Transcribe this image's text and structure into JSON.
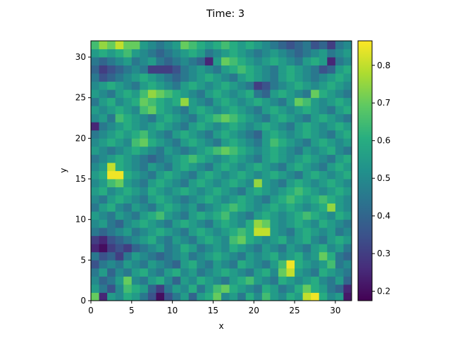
{
  "chart_data": {
    "type": "heatmap",
    "title": "Time: 3",
    "xlabel": "x",
    "ylabel": "y",
    "xlim": [
      0,
      32
    ],
    "ylim": [
      0,
      32
    ],
    "grid_size": [
      32,
      32
    ],
    "xticks": [
      0,
      5,
      10,
      15,
      20,
      25,
      30
    ],
    "yticks": [
      0,
      5,
      10,
      15,
      20,
      25,
      30
    ],
    "colorbar": {
      "range": [
        0.175,
        0.865
      ],
      "ticks": [
        0.2,
        0.3,
        0.4,
        0.5,
        0.6,
        0.7,
        0.8
      ],
      "colormap": "viridis"
    },
    "rows_bottom_to_top": [
      [
        0.7,
        0.25,
        0.55,
        0.5,
        0.6,
        0.55,
        0.45,
        0.35,
        0.2,
        0.35,
        0.45,
        0.55,
        0.4,
        0.55,
        0.6,
        0.7,
        0.5,
        0.55,
        0.45,
        0.6,
        0.5,
        0.65,
        0.55,
        0.5,
        0.6,
        0.55,
        0.8,
        0.85,
        0.6,
        0.5,
        0.55,
        0.22
      ],
      [
        0.55,
        0.45,
        0.35,
        0.5,
        0.65,
        0.6,
        0.55,
        0.4,
        0.3,
        0.45,
        0.55,
        0.5,
        0.6,
        0.45,
        0.55,
        0.65,
        0.7,
        0.6,
        0.55,
        0.5,
        0.45,
        0.6,
        0.55,
        0.45,
        0.5,
        0.6,
        0.7,
        0.6,
        0.55,
        0.45,
        0.4,
        0.25
      ],
      [
        0.5,
        0.4,
        0.45,
        0.55,
        0.7,
        0.5,
        0.45,
        0.55,
        0.6,
        0.5,
        0.4,
        0.55,
        0.5,
        0.6,
        0.55,
        0.5,
        0.45,
        0.55,
        0.6,
        0.65,
        0.55,
        0.5,
        0.45,
        0.6,
        0.55,
        0.5,
        0.55,
        0.6,
        0.5,
        0.45,
        0.55,
        0.4
      ],
      [
        0.45,
        0.55,
        0.4,
        0.5,
        0.45,
        0.55,
        0.6,
        0.5,
        0.45,
        0.55,
        0.6,
        0.5,
        0.55,
        0.45,
        0.5,
        0.55,
        0.6,
        0.55,
        0.5,
        0.45,
        0.55,
        0.6,
        0.5,
        0.7,
        0.8,
        0.55,
        0.5,
        0.45,
        0.6,
        0.55,
        0.5,
        0.45
      ],
      [
        0.35,
        0.45,
        0.5,
        0.45,
        0.55,
        0.5,
        0.45,
        0.55,
        0.5,
        0.45,
        0.4,
        0.55,
        0.6,
        0.5,
        0.45,
        0.55,
        0.5,
        0.45,
        0.6,
        0.55,
        0.5,
        0.45,
        0.55,
        0.65,
        0.85,
        0.6,
        0.55,
        0.5,
        0.55,
        0.65,
        0.45,
        0.5
      ],
      [
        0.45,
        0.35,
        0.4,
        0.3,
        0.45,
        0.55,
        0.5,
        0.45,
        0.4,
        0.45,
        0.5,
        0.55,
        0.45,
        0.5,
        0.55,
        0.6,
        0.55,
        0.5,
        0.45,
        0.55,
        0.5,
        0.55,
        0.6,
        0.5,
        0.55,
        0.6,
        0.5,
        0.55,
        0.7,
        0.6,
        0.45,
        0.4
      ],
      [
        0.25,
        0.2,
        0.3,
        0.35,
        0.3,
        0.4,
        0.45,
        0.5,
        0.55,
        0.45,
        0.5,
        0.6,
        0.55,
        0.45,
        0.5,
        0.55,
        0.5,
        0.6,
        0.55,
        0.5,
        0.45,
        0.55,
        0.5,
        0.45,
        0.55,
        0.5,
        0.45,
        0.55,
        0.6,
        0.5,
        0.55,
        0.45
      ],
      [
        0.3,
        0.25,
        0.35,
        0.4,
        0.45,
        0.5,
        0.55,
        0.6,
        0.5,
        0.45,
        0.55,
        0.5,
        0.45,
        0.55,
        0.6,
        0.55,
        0.5,
        0.65,
        0.7,
        0.6,
        0.55,
        0.5,
        0.55,
        0.6,
        0.5,
        0.55,
        0.6,
        0.5,
        0.45,
        0.55,
        0.6,
        0.55
      ],
      [
        0.45,
        0.4,
        0.45,
        0.5,
        0.55,
        0.45,
        0.5,
        0.55,
        0.6,
        0.55,
        0.5,
        0.45,
        0.55,
        0.6,
        0.55,
        0.5,
        0.55,
        0.6,
        0.65,
        0.6,
        0.8,
        0.8,
        0.55,
        0.5,
        0.45,
        0.55,
        0.6,
        0.55,
        0.5,
        0.55,
        0.45,
        0.5
      ],
      [
        0.5,
        0.55,
        0.45,
        0.4,
        0.5,
        0.55,
        0.6,
        0.55,
        0.5,
        0.45,
        0.55,
        0.6,
        0.55,
        0.5,
        0.45,
        0.55,
        0.6,
        0.55,
        0.5,
        0.6,
        0.75,
        0.7,
        0.55,
        0.5,
        0.55,
        0.6,
        0.55,
        0.5,
        0.6,
        0.55,
        0.5,
        0.45
      ],
      [
        0.55,
        0.5,
        0.45,
        0.55,
        0.5,
        0.45,
        0.55,
        0.6,
        0.65,
        0.55,
        0.5,
        0.45,
        0.55,
        0.6,
        0.55,
        0.6,
        0.65,
        0.55,
        0.5,
        0.45,
        0.55,
        0.6,
        0.55,
        0.5,
        0.55,
        0.6,
        0.65,
        0.6,
        0.55,
        0.5,
        0.6,
        0.55
      ],
      [
        0.45,
        0.55,
        0.6,
        0.5,
        0.45,
        0.55,
        0.5,
        0.45,
        0.55,
        0.6,
        0.55,
        0.5,
        0.55,
        0.45,
        0.5,
        0.55,
        0.6,
        0.65,
        0.6,
        0.55,
        0.5,
        0.55,
        0.6,
        0.55,
        0.6,
        0.55,
        0.5,
        0.55,
        0.6,
        0.75,
        0.55,
        0.5
      ],
      [
        0.5,
        0.45,
        0.55,
        0.6,
        0.55,
        0.5,
        0.45,
        0.55,
        0.6,
        0.55,
        0.5,
        0.45,
        0.5,
        0.55,
        0.6,
        0.55,
        0.5,
        0.55,
        0.6,
        0.55,
        0.5,
        0.45,
        0.55,
        0.6,
        0.65,
        0.6,
        0.55,
        0.6,
        0.65,
        0.6,
        0.55,
        0.5
      ],
      [
        0.55,
        0.6,
        0.5,
        0.55,
        0.6,
        0.55,
        0.5,
        0.6,
        0.55,
        0.5,
        0.55,
        0.6,
        0.55,
        0.5,
        0.55,
        0.6,
        0.55,
        0.5,
        0.45,
        0.55,
        0.6,
        0.55,
        0.5,
        0.55,
        0.6,
        0.65,
        0.6,
        0.55,
        0.5,
        0.55,
        0.6,
        0.55
      ],
      [
        0.5,
        0.55,
        0.65,
        0.7,
        0.55,
        0.5,
        0.45,
        0.55,
        0.6,
        0.55,
        0.5,
        0.45,
        0.55,
        0.6,
        0.55,
        0.5,
        0.55,
        0.6,
        0.55,
        0.5,
        0.75,
        0.55,
        0.5,
        0.45,
        0.55,
        0.6,
        0.55,
        0.5,
        0.55,
        0.6,
        0.55,
        0.5
      ],
      [
        0.55,
        0.6,
        0.85,
        0.85,
        0.6,
        0.55,
        0.5,
        0.45,
        0.55,
        0.6,
        0.55,
        0.5,
        0.45,
        0.55,
        0.6,
        0.55,
        0.5,
        0.55,
        0.6,
        0.55,
        0.5,
        0.55,
        0.6,
        0.55,
        0.5,
        0.45,
        0.55,
        0.6,
        0.55,
        0.5,
        0.55,
        0.6
      ],
      [
        0.5,
        0.55,
        0.8,
        0.6,
        0.55,
        0.5,
        0.45,
        0.55,
        0.5,
        0.45,
        0.55,
        0.6,
        0.55,
        0.5,
        0.45,
        0.55,
        0.6,
        0.55,
        0.5,
        0.55,
        0.6,
        0.55,
        0.5,
        0.45,
        0.55,
        0.6,
        0.55,
        0.5,
        0.45,
        0.55,
        0.6,
        0.55
      ],
      [
        0.45,
        0.5,
        0.55,
        0.6,
        0.55,
        0.5,
        0.45,
        0.4,
        0.45,
        0.5,
        0.55,
        0.6,
        0.65,
        0.6,
        0.55,
        0.5,
        0.55,
        0.6,
        0.55,
        0.5,
        0.45,
        0.55,
        0.6,
        0.55,
        0.5,
        0.55,
        0.6,
        0.55,
        0.5,
        0.45,
        0.55,
        0.6
      ],
      [
        0.55,
        0.5,
        0.45,
        0.5,
        0.55,
        0.6,
        0.55,
        0.5,
        0.45,
        0.55,
        0.5,
        0.45,
        0.5,
        0.55,
        0.6,
        0.65,
        0.7,
        0.65,
        0.6,
        0.55,
        0.5,
        0.55,
        0.6,
        0.55,
        0.5,
        0.45,
        0.55,
        0.5,
        0.55,
        0.6,
        0.5,
        0.45
      ],
      [
        0.5,
        0.55,
        0.6,
        0.55,
        0.5,
        0.65,
        0.7,
        0.6,
        0.55,
        0.5,
        0.45,
        0.55,
        0.6,
        0.55,
        0.5,
        0.45,
        0.55,
        0.6,
        0.55,
        0.5,
        0.45,
        0.55,
        0.65,
        0.6,
        0.55,
        0.5,
        0.45,
        0.55,
        0.6,
        0.55,
        0.5,
        0.55
      ],
      [
        0.45,
        0.5,
        0.55,
        0.6,
        0.55,
        0.6,
        0.65,
        0.55,
        0.5,
        0.45,
        0.55,
        0.6,
        0.55,
        0.5,
        0.45,
        0.55,
        0.6,
        0.55,
        0.5,
        0.45,
        0.4,
        0.55,
        0.6,
        0.55,
        0.5,
        0.55,
        0.6,
        0.55,
        0.5,
        0.45,
        0.55,
        0.6
      ],
      [
        0.25,
        0.45,
        0.5,
        0.55,
        0.6,
        0.55,
        0.5,
        0.55,
        0.6,
        0.55,
        0.5,
        0.45,
        0.55,
        0.6,
        0.55,
        0.5,
        0.55,
        0.6,
        0.55,
        0.5,
        0.55,
        0.6,
        0.55,
        0.5,
        0.45,
        0.55,
        0.6,
        0.55,
        0.5,
        0.55,
        0.6,
        0.55
      ],
      [
        0.5,
        0.55,
        0.45,
        0.65,
        0.6,
        0.55,
        0.5,
        0.45,
        0.55,
        0.6,
        0.55,
        0.5,
        0.45,
        0.55,
        0.6,
        0.65,
        0.7,
        0.65,
        0.6,
        0.55,
        0.5,
        0.45,
        0.55,
        0.6,
        0.55,
        0.5,
        0.45,
        0.55,
        0.6,
        0.55,
        0.5,
        0.45
      ],
      [
        0.55,
        0.5,
        0.55,
        0.6,
        0.55,
        0.5,
        0.65,
        0.7,
        0.6,
        0.55,
        0.5,
        0.45,
        0.55,
        0.6,
        0.55,
        0.5,
        0.55,
        0.6,
        0.55,
        0.5,
        0.45,
        0.55,
        0.6,
        0.55,
        0.5,
        0.55,
        0.6,
        0.55,
        0.5,
        0.45,
        0.55,
        0.6
      ],
      [
        0.45,
        0.55,
        0.6,
        0.5,
        0.55,
        0.6,
        0.7,
        0.65,
        0.6,
        0.55,
        0.6,
        0.75,
        0.55,
        0.5,
        0.45,
        0.55,
        0.6,
        0.55,
        0.5,
        0.55,
        0.6,
        0.55,
        0.5,
        0.45,
        0.55,
        0.7,
        0.65,
        0.55,
        0.5,
        0.55,
        0.6,
        0.55
      ],
      [
        0.55,
        0.5,
        0.45,
        0.55,
        0.6,
        0.55,
        0.65,
        0.75,
        0.7,
        0.65,
        0.6,
        0.55,
        0.5,
        0.45,
        0.55,
        0.6,
        0.55,
        0.5,
        0.55,
        0.6,
        0.45,
        0.4,
        0.55,
        0.6,
        0.55,
        0.5,
        0.45,
        0.7,
        0.6,
        0.55,
        0.5,
        0.45
      ],
      [
        0.5,
        0.55,
        0.6,
        0.55,
        0.5,
        0.45,
        0.55,
        0.6,
        0.55,
        0.5,
        0.45,
        0.55,
        0.6,
        0.55,
        0.5,
        0.55,
        0.6,
        0.55,
        0.5,
        0.45,
        0.3,
        0.35,
        0.45,
        0.5,
        0.55,
        0.6,
        0.55,
        0.5,
        0.55,
        0.6,
        0.55,
        0.5
      ],
      [
        0.45,
        0.35,
        0.4,
        0.45,
        0.5,
        0.55,
        0.6,
        0.55,
        0.5,
        0.45,
        0.4,
        0.45,
        0.5,
        0.55,
        0.6,
        0.55,
        0.5,
        0.45,
        0.55,
        0.6,
        0.55,
        0.5,
        0.45,
        0.55,
        0.6,
        0.55,
        0.5,
        0.45,
        0.5,
        0.55,
        0.6,
        0.55
      ],
      [
        0.4,
        0.3,
        0.35,
        0.4,
        0.45,
        0.5,
        0.45,
        0.3,
        0.3,
        0.3,
        0.35,
        0.45,
        0.5,
        0.55,
        0.5,
        0.45,
        0.55,
        0.6,
        0.65,
        0.6,
        0.55,
        0.5,
        0.45,
        0.55,
        0.6,
        0.55,
        0.5,
        0.45,
        0.35,
        0.4,
        0.55,
        0.6
      ],
      [
        0.45,
        0.4,
        0.45,
        0.5,
        0.55,
        0.45,
        0.5,
        0.55,
        0.45,
        0.4,
        0.45,
        0.5,
        0.45,
        0.4,
        0.25,
        0.55,
        0.7,
        0.65,
        0.6,
        0.55,
        0.5,
        0.55,
        0.6,
        0.55,
        0.5,
        0.45,
        0.55,
        0.6,
        0.55,
        0.25,
        0.45,
        0.5
      ],
      [
        0.55,
        0.6,
        0.55,
        0.6,
        0.65,
        0.55,
        0.5,
        0.45,
        0.4,
        0.45,
        0.5,
        0.55,
        0.6,
        0.55,
        0.45,
        0.5,
        0.55,
        0.6,
        0.55,
        0.5,
        0.45,
        0.5,
        0.55,
        0.5,
        0.45,
        0.4,
        0.45,
        0.5,
        0.55,
        0.45,
        0.5,
        0.55
      ],
      [
        0.65,
        0.75,
        0.7,
        0.8,
        0.7,
        0.7,
        0.55,
        0.5,
        0.45,
        0.5,
        0.55,
        0.7,
        0.65,
        0.6,
        0.55,
        0.6,
        0.65,
        0.6,
        0.55,
        0.6,
        0.55,
        0.5,
        0.45,
        0.4,
        0.35,
        0.4,
        0.45,
        0.35,
        0.4,
        0.3,
        0.45,
        0.5
      ]
    ]
  }
}
